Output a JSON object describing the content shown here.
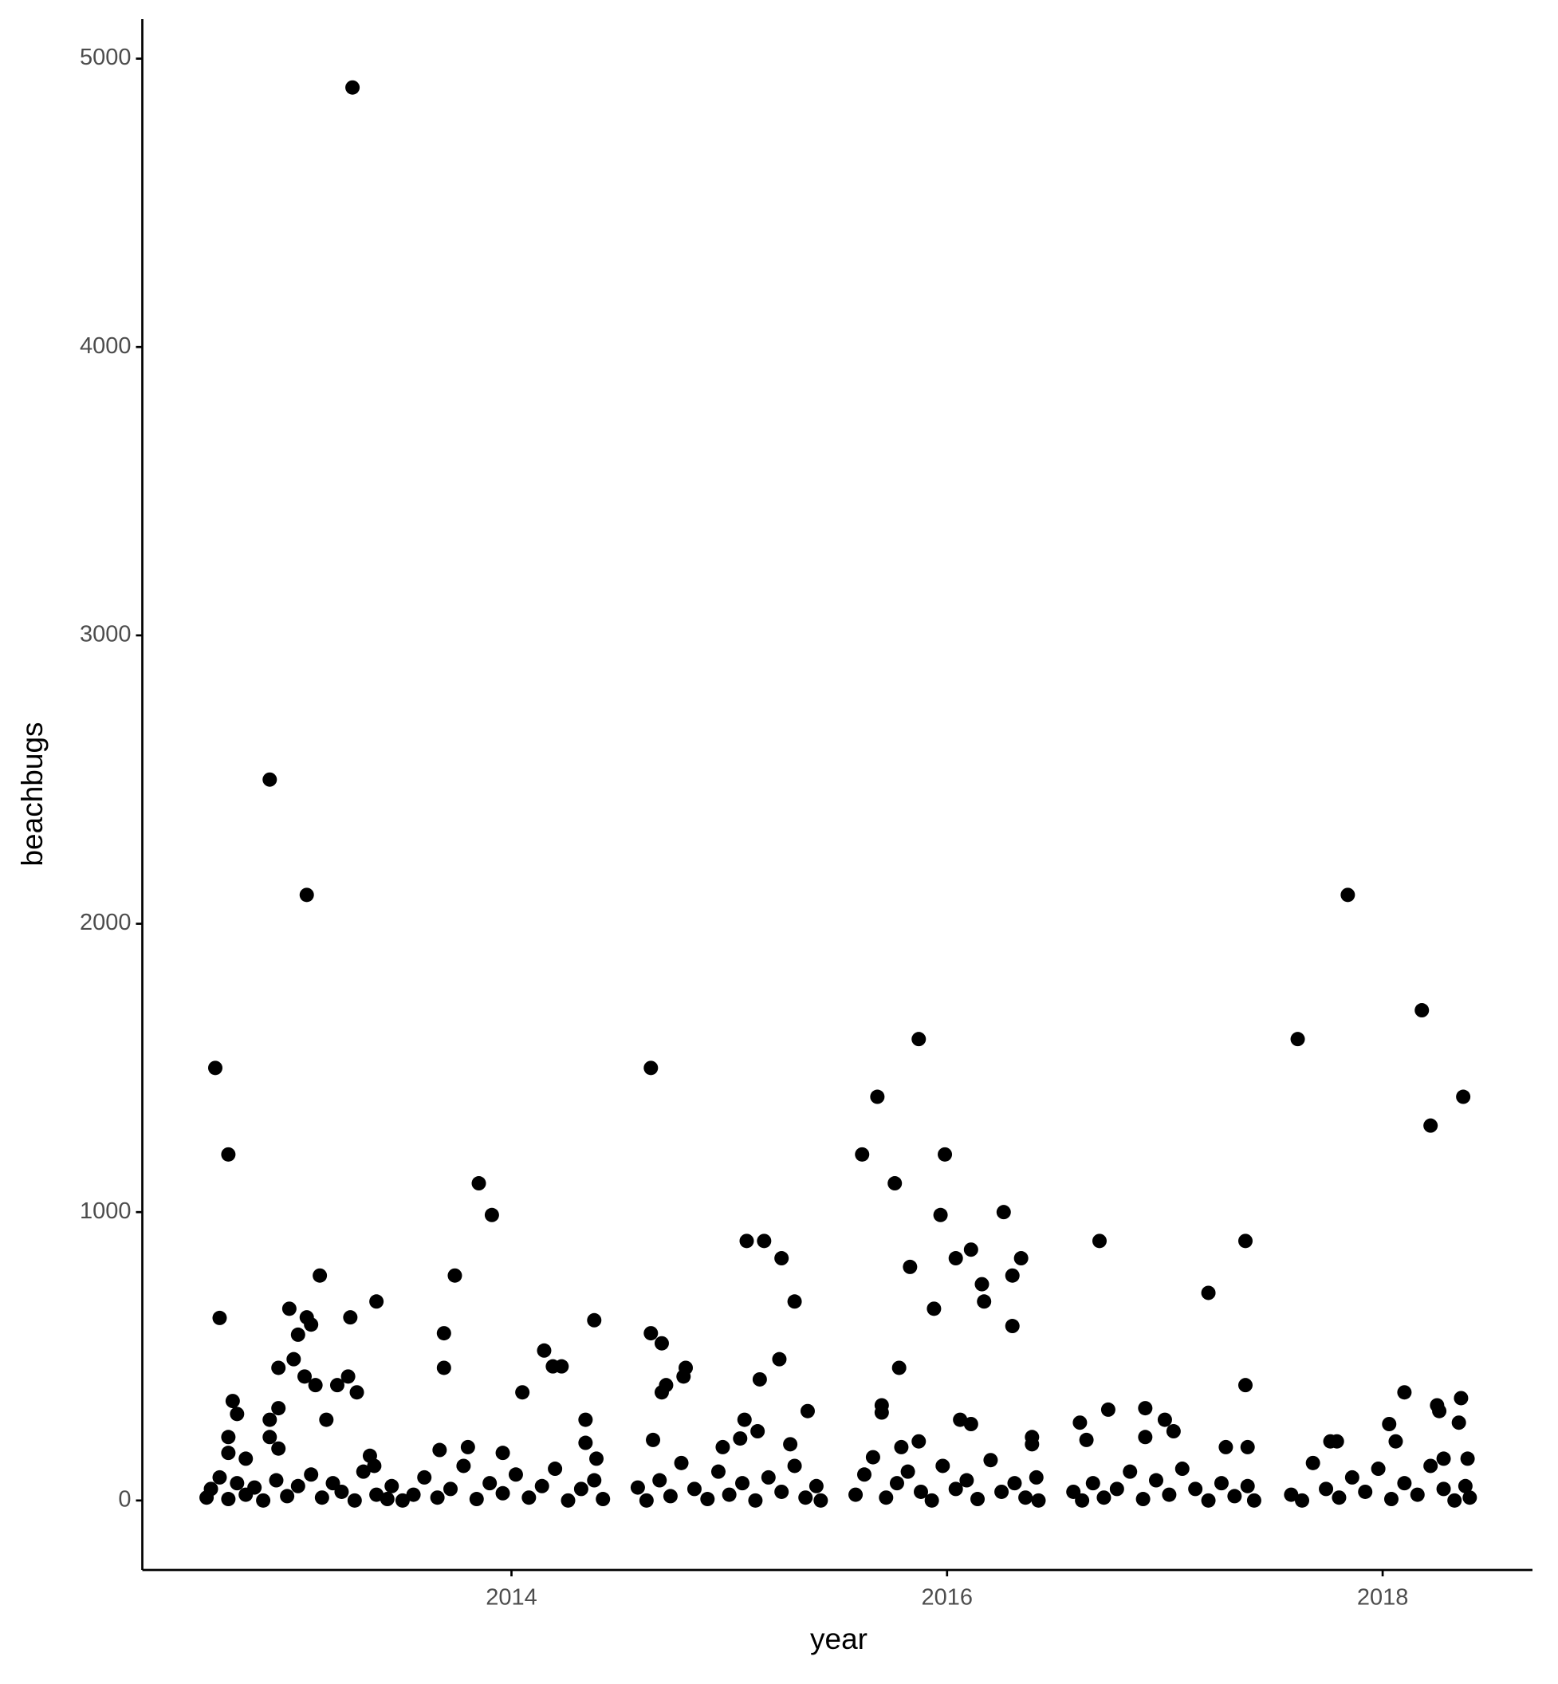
{
  "chart_data": {
    "type": "scatter",
    "x_label": "year",
    "y_label": "beachbugs",
    "color": "#000000",
    "grid": false,
    "xlim": [
      2012.305,
      2018.688
    ],
    "ylim": [
      -241,
      5137
    ],
    "xticks": [
      2014,
      2016,
      2018
    ],
    "yticks": [
      0,
      1000,
      2000,
      3000,
      4000,
      5000
    ],
    "x": [
      2012.64,
      2012.7,
      2012.66,
      2012.89,
      2013.06,
      2013.27,
      2012.72,
      2012.74,
      2012.7,
      2012.7,
      2012.78,
      2012.89,
      2012.89,
      2012.93,
      2012.93,
      2012.93,
      2012.98,
      2013.0,
      2013.02,
      2013.06,
      2013.08,
      2013.05,
      2013.1,
      2013.12,
      2013.15,
      2013.2,
      2013.25,
      2013.26,
      2013.29,
      2013.38,
      2013.35,
      2013.37,
      2012.6,
      2012.62,
      2012.66,
      2012.7,
      2012.74,
      2012.78,
      2012.82,
      2012.86,
      2012.92,
      2012.97,
      2013.02,
      2013.08,
      2013.13,
      2013.18,
      2013.22,
      2013.28,
      2013.32,
      2013.38,
      2013.43,
      2013.69,
      2013.69,
      2013.74,
      2013.85,
      2013.91,
      2013.67,
      2013.8,
      2013.96,
      2014.05,
      2014.15,
      2014.19,
      2014.23,
      2014.34,
      2014.34,
      2014.38,
      2014.39,
      2013.45,
      2013.5,
      2013.55,
      2013.6,
      2013.66,
      2013.72,
      2013.78,
      2013.84,
      2013.9,
      2013.96,
      2014.02,
      2014.08,
      2014.14,
      2014.2,
      2014.26,
      2014.32,
      2014.38,
      2014.42,
      2014.64,
      2014.64,
      2014.69,
      2014.71,
      2014.69,
      2014.8,
      2014.79,
      2014.65,
      2015.07,
      2015.08,
      2015.16,
      2015.13,
      2015.14,
      2015.23,
      2015.24,
      2015.3,
      2015.36,
      2015.28,
      2015.05,
      2014.97,
      2014.58,
      2014.62,
      2014.68,
      2014.73,
      2014.78,
      2014.84,
      2014.9,
      2014.95,
      2015.0,
      2015.06,
      2015.12,
      2015.18,
      2015.24,
      2015.3,
      2015.35,
      2015.4,
      2015.42,
      2015.61,
      2015.68,
      2015.76,
      2015.87,
      2015.83,
      2015.78,
      2015.7,
      2015.7,
      2015.94,
      2015.97,
      2015.99,
      2016.04,
      2016.11,
      2016.16,
      2016.17,
      2016.26,
      2016.3,
      2016.34,
      2016.3,
      2016.06,
      2016.11,
      2016.39,
      2016.39,
      2015.87,
      2015.79,
      2015.58,
      2015.62,
      2015.66,
      2015.72,
      2015.77,
      2015.82,
      2015.88,
      2015.93,
      2015.98,
      2016.04,
      2016.09,
      2016.14,
      2016.2,
      2016.25,
      2016.31,
      2016.36,
      2016.41,
      2016.42,
      2016.61,
      2016.7,
      2016.74,
      2016.91,
      2017.0,
      2017.04,
      2017.2,
      2017.37,
      2017.37,
      2017.28,
      2017.38,
      2016.64,
      2016.91,
      2016.58,
      2016.62,
      2016.67,
      2016.72,
      2016.78,
      2016.84,
      2016.9,
      2016.96,
      2017.02,
      2017.08,
      2017.14,
      2017.2,
      2017.26,
      2017.32,
      2017.38,
      2017.41,
      2017.61,
      2017.84,
      2018.18,
      2018.22,
      2018.37,
      2018.1,
      2018.03,
      2018.25,
      2018.26,
      2018.36,
      2018.35,
      2017.76,
      2017.79,
      2018.06,
      2018.28,
      2018.39,
      2017.58,
      2017.63,
      2017.68,
      2017.74,
      2017.8,
      2017.86,
      2017.92,
      2017.98,
      2018.04,
      2018.1,
      2018.16,
      2018.22,
      2018.28,
      2018.33,
      2018.38,
      2018.4
    ],
    "values": [
      1500,
      1200,
      633,
      2500,
      2100,
      4900,
      345,
      300,
      220,
      165,
      145,
      280,
      220,
      460,
      320,
      180,
      665,
      490,
      575,
      635,
      610,
      430,
      400,
      780,
      280,
      400,
      430,
      635,
      375,
      690,
      155,
      120,
      10,
      40,
      80,
      5,
      60,
      20,
      45,
      0,
      70,
      15,
      50,
      90,
      10,
      60,
      30,
      0,
      100,
      20,
      5,
      580,
      460,
      780,
      1100,
      990,
      175,
      185,
      165,
      375,
      520,
      465,
      465,
      280,
      200,
      625,
      145,
      50,
      0,
      20,
      80,
      10,
      40,
      120,
      5,
      60,
      25,
      90,
      10,
      50,
      110,
      0,
      40,
      70,
      5,
      1500,
      580,
      545,
      400,
      375,
      460,
      430,
      210,
      280,
      900,
      900,
      240,
      420,
      490,
      840,
      690,
      310,
      195,
      215,
      185,
      45,
      0,
      70,
      15,
      130,
      40,
      5,
      100,
      20,
      60,
      0,
      80,
      30,
      120,
      10,
      50,
      0,
      1200,
      1400,
      1100,
      1600,
      810,
      460,
      330,
      305,
      665,
      990,
      1200,
      840,
      870,
      750,
      690,
      1000,
      780,
      840,
      605,
      280,
      265,
      220,
      195,
      205,
      185,
      20,
      90,
      150,
      10,
      60,
      100,
      30,
      0,
      120,
      40,
      70,
      5,
      140,
      30,
      60,
      10,
      80,
      0,
      270,
      900,
      315,
      320,
      280,
      240,
      720,
      900,
      400,
      185,
      185,
      210,
      220,
      30,
      0,
      60,
      10,
      40,
      100,
      5,
      70,
      20,
      110,
      40,
      0,
      60,
      15,
      50,
      0,
      1600,
      2100,
      1700,
      1300,
      1400,
      375,
      265,
      330,
      310,
      355,
      270,
      205,
      205,
      205,
      145,
      145,
      20,
      0,
      130,
      40,
      10,
      80,
      30,
      110,
      5,
      60,
      20,
      120,
      40,
      0,
      50,
      10
    ]
  }
}
